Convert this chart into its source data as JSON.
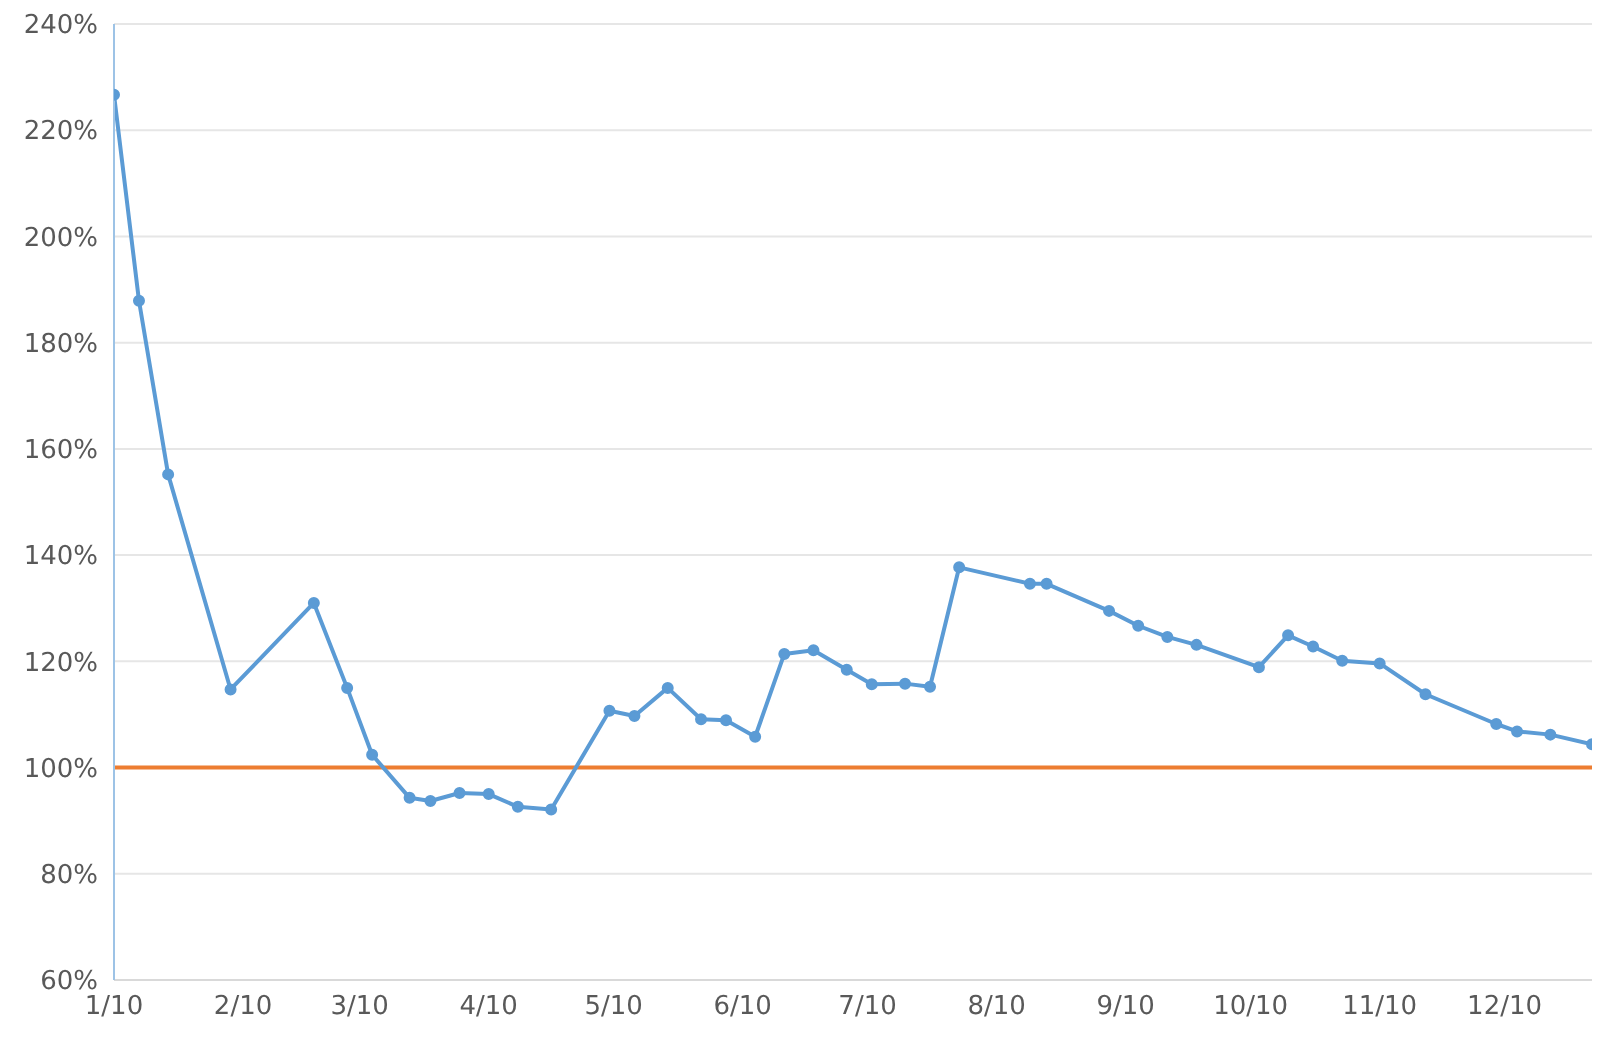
{
  "chart_data": {
    "type": "line",
    "x": [
      "--01-10",
      "--01-16",
      "--01-23",
      "--02-07",
      "--02-27",
      "--03-07",
      "--03-13",
      "--03-22",
      "--03-27",
      "--04-03",
      "--04-10",
      "--04-17",
      "--04-25",
      "--05-09",
      "--05-15",
      "--05-23",
      "--05-31",
      "--06-06",
      "--06-13",
      "--06-20",
      "--06-27",
      "--07-05",
      "--07-11",
      "--07-19",
      "--07-25",
      "--08-01",
      "--08-18",
      "--08-22",
      "--09-06",
      "--09-13",
      "--09-20",
      "--09-27",
      "--10-12",
      "--10-19",
      "--10-25",
      "--11-01",
      "--11-10",
      "--11-21",
      "--12-08",
      "--12-13",
      "--12-21",
      "--12-31"
    ],
    "series": [
      {
        "color": "#5b9bd5",
        "values": [
          226.7,
          187.9,
          155.2,
          114.7,
          131,
          115,
          102.4,
          94.3,
          93.7,
          95.2,
          95,
          92.6,
          92.1,
          110.7,
          109.7,
          115,
          109.1,
          108.9,
          105.8,
          121.4,
          122.1,
          118.4,
          115.7,
          115.8,
          115.2,
          137.7,
          134.6,
          134.6,
          129.5,
          126.7,
          124.6,
          123.1,
          118.9,
          124.9,
          122.8,
          120.1,
          119.6,
          113.8,
          108.2,
          106.8,
          106.2,
          104.4
        ]
      }
    ],
    "xlim": [
      "--01-10",
      "--12-31"
    ],
    "xticks": [
      {
        "value": "--01-10",
        "label": "1/10"
      },
      {
        "value": "--02-10",
        "label": "2/10"
      },
      {
        "value": "--03-10",
        "label": "3/10"
      },
      {
        "value": "--04-10",
        "label": "4/10"
      },
      {
        "value": "--05-10",
        "label": "5/10"
      },
      {
        "value": "--06-10",
        "label": "6/10"
      },
      {
        "value": "--07-10",
        "label": "7/10"
      },
      {
        "value": "--08-10",
        "label": "8/10"
      },
      {
        "value": "--09-10",
        "label": "9/10"
      },
      {
        "value": "--10-10",
        "label": "10/10"
      },
      {
        "value": "--11-10",
        "label": "11/10"
      },
      {
        "value": "--12-10",
        "label": "12/10"
      }
    ],
    "ylim": [
      60,
      240
    ],
    "yticks": [
      {
        "value": 60,
        "label": "60%"
      },
      {
        "value": 80,
        "label": "80%"
      },
      {
        "value": 100,
        "label": "100%"
      },
      {
        "value": 120,
        "label": "120%"
      },
      {
        "value": 140,
        "label": "140%"
      },
      {
        "value": 160,
        "label": "160%"
      },
      {
        "value": 180,
        "label": "180%"
      },
      {
        "value": 200,
        "label": "200%"
      },
      {
        "value": 220,
        "label": "220%"
      },
      {
        "value": 240,
        "label": "240%"
      }
    ],
    "ref_lines": [
      {
        "axis": "y",
        "value": 100,
        "color": "#ed7d31"
      }
    ],
    "grid": "y",
    "marker": "circle",
    "line_style": "solid"
  }
}
